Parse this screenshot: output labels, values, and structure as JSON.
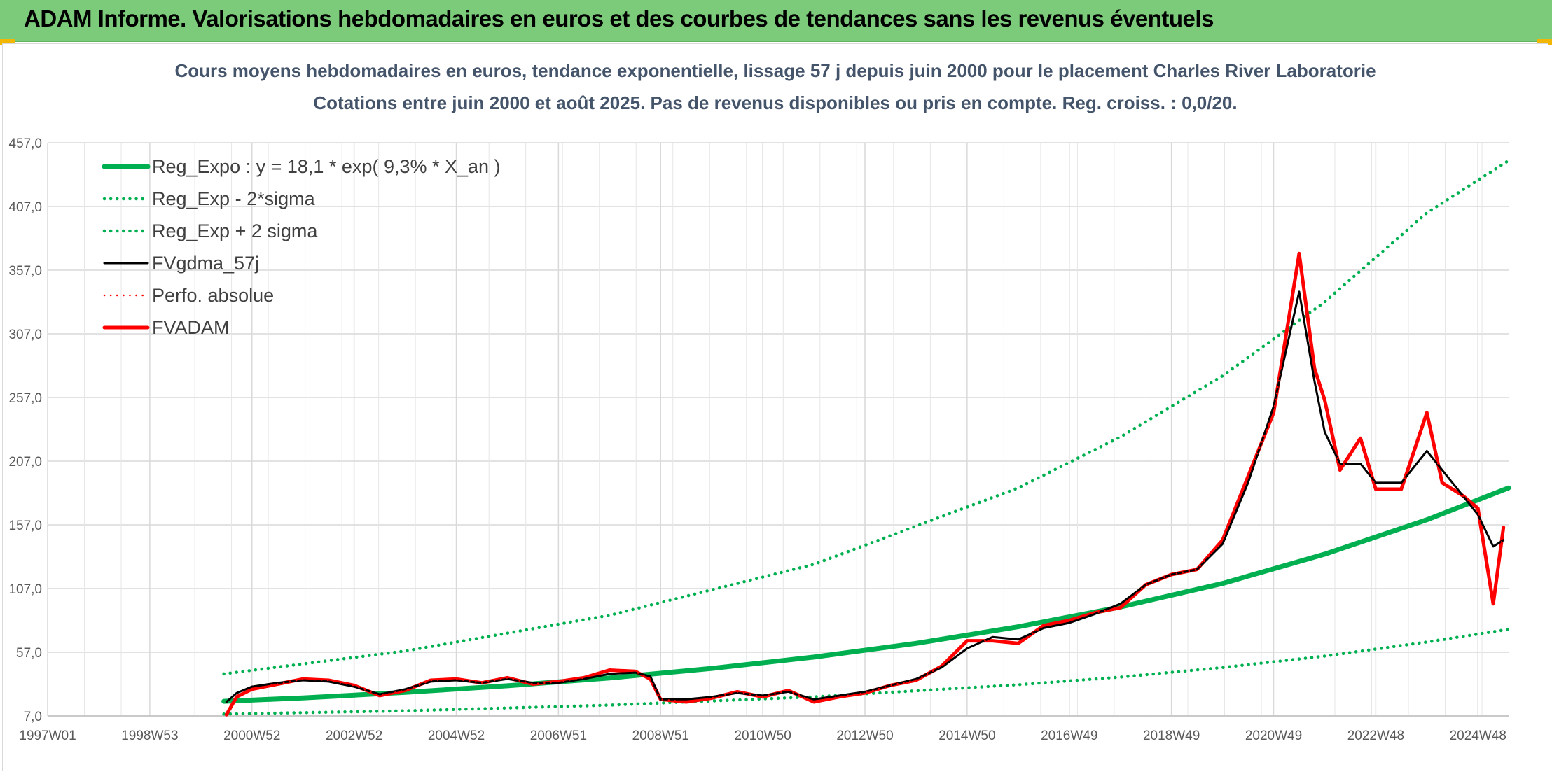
{
  "banner": {
    "title": "ADAM Informe. Valorisations hebdomadaires en euros et des courbes de tendances sans les revenus éventuels",
    "color": "#7ccb7a"
  },
  "chart_data": {
    "type": "line",
    "title": "Cours moyens hebdomadaires en euros, tendance exponentielle, lissage 57 j depuis juin 2000 pour le placement Charles River Laboratorie",
    "subtitle": "Cotations entre juin 2000 et août 2025. Pas de revenus disponibles ou pris en compte. Reg. croiss. : 0,0/20.",
    "xlabel": "",
    "ylabel": "",
    "xlim": [
      1997.0,
      2025.6
    ],
    "ylim": [
      7,
      457
    ],
    "yticks": [
      "7,0",
      "57,0",
      "107,0",
      "157,0",
      "207,0",
      "257,0",
      "307,0",
      "357,0",
      "407,0",
      "457,0"
    ],
    "xticks": [
      {
        "label": "1997W01",
        "x": 1997.0
      },
      {
        "label": "1998W53",
        "x": 1999.0
      },
      {
        "label": "2000W52",
        "x": 2001.0
      },
      {
        "label": "2002W52",
        "x": 2003.0
      },
      {
        "label": "2004W52",
        "x": 2005.0
      },
      {
        "label": "2006W51",
        "x": 2007.0
      },
      {
        "label": "2008W51",
        "x": 2009.0
      },
      {
        "label": "2010W50",
        "x": 2011.0
      },
      {
        "label": "2012W50",
        "x": 2013.0
      },
      {
        "label": "2014W50",
        "x": 2015.0
      },
      {
        "label": "2016W49",
        "x": 2017.0
      },
      {
        "label": "2018W49",
        "x": 2019.0
      },
      {
        "label": "2020W49",
        "x": 2021.0
      },
      {
        "label": "2022W48",
        "x": 2023.0
      },
      {
        "label": "2024W48",
        "x": 2025.0
      }
    ],
    "grid": true,
    "legend_position": "top-left",
    "series": [
      {
        "name": "Reg_Expo : y = 18,1 * exp( 9,3% *  X_an )",
        "color": "#00b050",
        "style": "solid",
        "x": [
          2000.45,
          2002.0,
          2004.0,
          2006.0,
          2008.0,
          2010.0,
          2012.0,
          2014.0,
          2016.0,
          2018.0,
          2020.0,
          2022.0,
          2024.0,
          2025.6
        ],
        "y": [
          18.5,
          21.2,
          25.5,
          30.7,
          36.8,
          44.3,
          53.2,
          64.0,
          77.0,
          92.5,
          111.0,
          134.0,
          161.0,
          186.0
        ]
      },
      {
        "name": "Reg_Exp - 2*sigma",
        "color": "#00b050",
        "style": "dotted",
        "x": [
          2000.45,
          2004.0,
          2008.0,
          2012.0,
          2016.0,
          2018.0,
          2020.0,
          2022.0,
          2024.0,
          2025.6
        ],
        "y": [
          8.5,
          11.0,
          15.5,
          22.0,
          31.5,
          37.5,
          45.0,
          54.0,
          65.0,
          75.0
        ]
      },
      {
        "name": "Reg_Exp + 2 sigma",
        "color": "#00b050",
        "style": "dotted",
        "x": [
          2000.45,
          2004.0,
          2008.0,
          2012.0,
          2016.0,
          2018.0,
          2020.0,
          2022.0,
          2024.0,
          2025.6
        ],
        "y": [
          40.0,
          58.0,
          86.0,
          126.0,
          186.0,
          226.0,
          274.0,
          332.0,
          402.0,
          443.0
        ]
      },
      {
        "name": "FVgdma_57j",
        "color": "#000000",
        "style": "solid",
        "x": [
          2000.5,
          2000.7,
          2001.0,
          2001.5,
          2002.0,
          2002.5,
          2003.0,
          2003.5,
          2004.0,
          2004.5,
          2005.0,
          2005.5,
          2006.0,
          2006.5,
          2007.0,
          2007.5,
          2008.0,
          2008.5,
          2008.8,
          2009.0,
          2009.5,
          2010.0,
          2010.5,
          2011.0,
          2011.5,
          2012.0,
          2012.5,
          2013.0,
          2013.5,
          2014.0,
          2014.5,
          2015.0,
          2015.5,
          2016.0,
          2016.5,
          2017.0,
          2017.5,
          2018.0,
          2018.5,
          2019.0,
          2019.5,
          2020.0,
          2020.5,
          2021.0,
          2021.5,
          2021.8,
          2022.0,
          2022.3,
          2022.7,
          2023.0,
          2023.5,
          2024.0,
          2024.3,
          2024.7,
          2025.0,
          2025.3,
          2025.5
        ],
        "y": [
          18,
          25,
          30,
          33,
          35,
          34,
          30,
          24,
          28,
          34,
          35,
          33,
          36,
          33,
          33,
          36,
          40,
          41,
          38,
          20,
          20,
          22,
          25,
          23,
          26,
          20,
          23,
          26,
          31,
          36,
          45,
          60,
          69,
          67,
          76,
          80,
          87,
          95,
          110,
          118,
          122,
          142,
          190,
          250,
          340,
          270,
          230,
          205,
          205,
          190,
          190,
          215,
          200,
          180,
          165,
          140,
          145
        ]
      },
      {
        "name": "Perfo. absolue",
        "color": "#ff0000",
        "style": "dotted",
        "x": [
          2000.5,
          2000.7,
          2001.0,
          2001.5,
          2002.0,
          2002.5,
          2003.0,
          2003.5,
          2004.0,
          2004.5,
          2005.0,
          2005.5,
          2006.0,
          2006.5,
          2007.0,
          2007.5,
          2008.0,
          2008.5,
          2008.8,
          2009.0,
          2009.5,
          2010.0,
          2010.5,
          2011.0,
          2011.5,
          2012.0,
          2012.5,
          2013.0,
          2013.5,
          2014.0,
          2014.5,
          2015.0,
          2015.5,
          2016.0,
          2016.5,
          2017.0,
          2017.5,
          2018.0,
          2018.5,
          2019.0,
          2019.5,
          2020.0,
          2020.5,
          2021.0,
          2021.5,
          2021.8,
          2022.0,
          2022.3,
          2022.7,
          2023.0,
          2023.5,
          2024.0,
          2024.3,
          2024.7,
          2025.0,
          2025.3,
          2025.5
        ],
        "y": [
          8,
          22,
          28,
          32,
          36,
          35,
          31,
          23,
          27,
          35,
          36,
          33,
          37,
          32,
          34,
          37,
          43,
          42,
          36,
          20,
          18,
          21,
          26,
          22,
          27,
          18,
          22,
          25,
          31,
          35,
          46,
          66,
          66,
          64,
          78,
          82,
          88,
          92,
          110,
          118,
          122,
          145,
          195,
          245,
          370,
          280,
          255,
          200,
          225,
          185,
          185,
          245,
          190,
          180,
          170,
          95,
          155
        ]
      },
      {
        "name": "FVADAM",
        "color": "#ff0000",
        "style": "solid",
        "x": [
          2000.5,
          2000.7,
          2001.0,
          2001.5,
          2002.0,
          2002.5,
          2003.0,
          2003.5,
          2004.0,
          2004.5,
          2005.0,
          2005.5,
          2006.0,
          2006.5,
          2007.0,
          2007.5,
          2008.0,
          2008.5,
          2008.8,
          2009.0,
          2009.5,
          2010.0,
          2010.5,
          2011.0,
          2011.5,
          2012.0,
          2012.5,
          2013.0,
          2013.5,
          2014.0,
          2014.5,
          2015.0,
          2015.5,
          2016.0,
          2016.5,
          2017.0,
          2017.5,
          2018.0,
          2018.5,
          2019.0,
          2019.5,
          2020.0,
          2020.5,
          2021.0,
          2021.5,
          2021.8,
          2022.0,
          2022.3,
          2022.7,
          2023.0,
          2023.5,
          2024.0,
          2024.3,
          2024.7,
          2025.0,
          2025.3,
          2025.5
        ],
        "y": [
          8,
          22,
          28,
          32,
          36,
          35,
          31,
          23,
          27,
          35,
          36,
          33,
          37,
          32,
          34,
          37,
          43,
          42,
          36,
          20,
          18,
          21,
          26,
          22,
          27,
          18,
          22,
          25,
          31,
          35,
          46,
          66,
          66,
          64,
          78,
          82,
          88,
          92,
          110,
          118,
          122,
          145,
          195,
          245,
          370,
          280,
          255,
          200,
          225,
          185,
          185,
          245,
          190,
          180,
          170,
          95,
          155
        ]
      }
    ]
  }
}
